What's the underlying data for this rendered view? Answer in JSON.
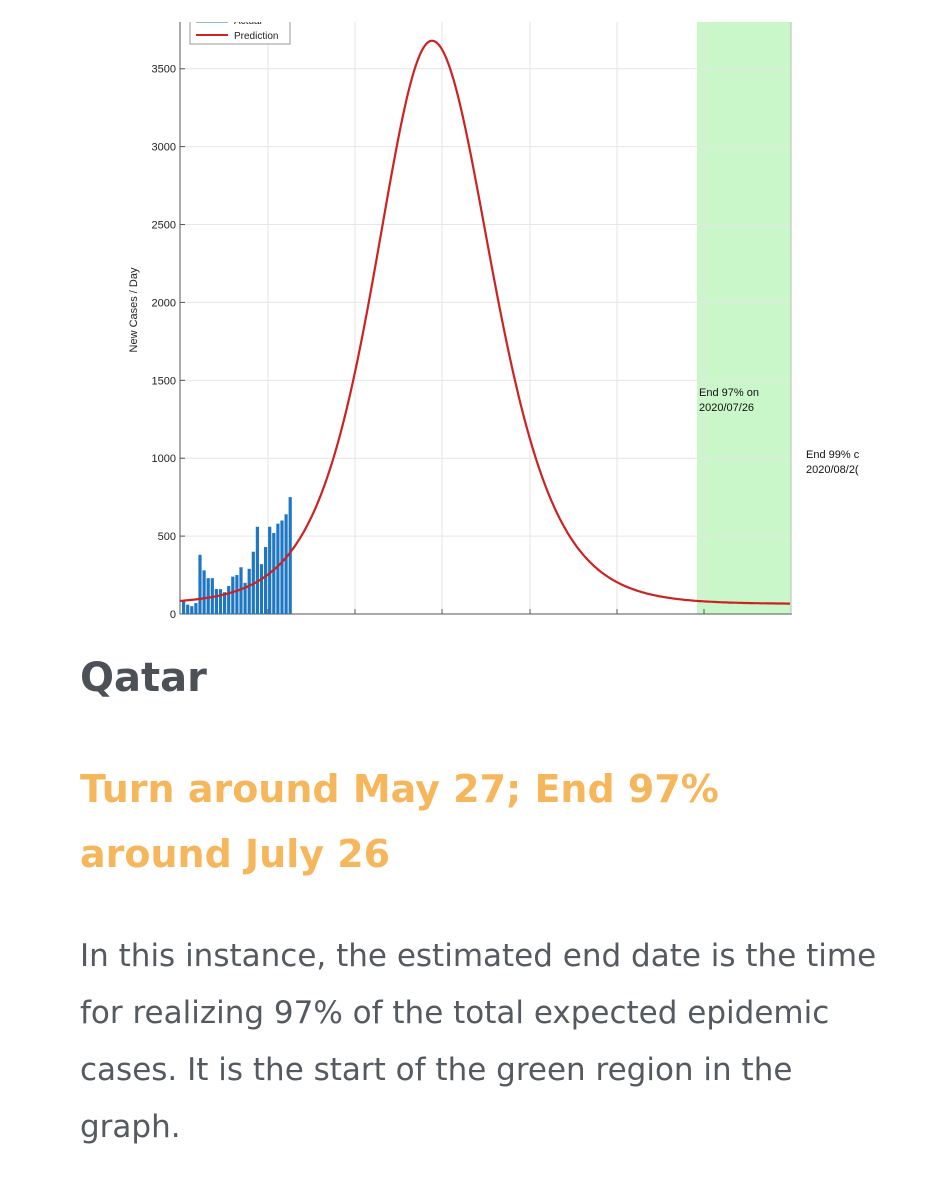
{
  "chart_data": {
    "type": "bar",
    "ylabel": "New Cases / Day",
    "ylim": [
      0,
      3800
    ],
    "yticks": [
      0,
      500,
      1000,
      1500,
      2000,
      2500,
      3000,
      3500
    ],
    "legend": {
      "placement": "top-left",
      "entries": [
        "Actual",
        "Prediction"
      ]
    },
    "grid": true,
    "series": [
      {
        "name": "Actual",
        "kind": "bar",
        "color": "#1f77c4",
        "values": [
          80,
          60,
          50,
          70,
          380,
          280,
          230,
          230,
          160,
          160,
          140,
          180,
          240,
          250,
          300,
          200,
          290,
          400,
          560,
          320,
          430,
          560,
          520,
          580,
          600,
          640,
          750
        ]
      },
      {
        "name": "Prediction",
        "kind": "line",
        "color": "#cc2222",
        "peak": 3680,
        "start": 75,
        "end": 95
      }
    ],
    "shaded_region": {
      "color": "#c9f7c9",
      "label": "End 97% on 2020/07/26"
    },
    "annotations": [
      {
        "text_lines": [
          "End 97% on",
          "2020/07/26"
        ]
      },
      {
        "text_lines": [
          "End 99% c",
          "2020/08/2("
        ]
      }
    ]
  },
  "article": {
    "country": "Qatar",
    "subheading": "Turn around May 27; End 97% around July 26",
    "body": "In this instance, the estimated end date is the time for realizing 97% of the total expected epidemic cases. It is the start of the green region in the graph."
  }
}
